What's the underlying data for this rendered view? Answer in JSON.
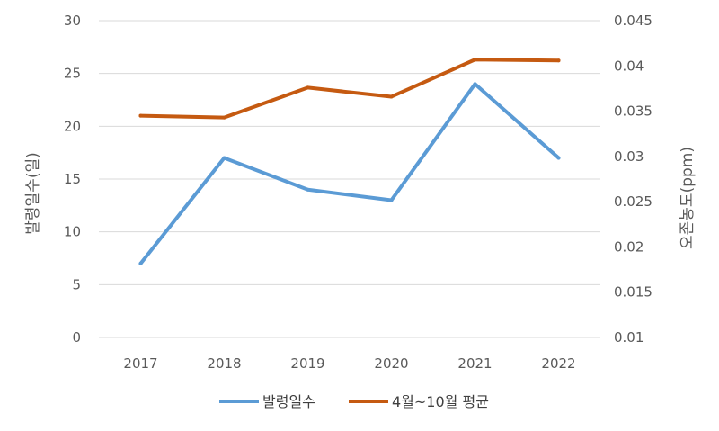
{
  "chart_data": {
    "type": "line",
    "categories": [
      "2017",
      "2018",
      "2019",
      "2020",
      "2021",
      "2022"
    ],
    "series": [
      {
        "name": "발령일수",
        "axis": "left",
        "color": "#5b9bd5",
        "values": [
          7,
          17,
          14,
          13,
          24,
          17
        ]
      },
      {
        "name": "4월~10월 평균",
        "axis": "right",
        "color": "#c55a11",
        "values": [
          0.0345,
          0.0343,
          0.0376,
          0.0366,
          0.0407,
          0.0406
        ]
      }
    ],
    "y_left": {
      "label": "발령일수(일)",
      "range": [
        0,
        30
      ],
      "ticks": [
        "0",
        "5",
        "10",
        "15",
        "20",
        "25",
        "30"
      ]
    },
    "y_right": {
      "label": "오존농도(ppm)",
      "range": [
        0.01,
        0.045
      ],
      "ticks": [
        "0.01",
        "0.015",
        "0.02",
        "0.025",
        "0.03",
        "0.035",
        "0.04",
        "0.045"
      ]
    },
    "grid": true,
    "legend_position": "bottom"
  }
}
